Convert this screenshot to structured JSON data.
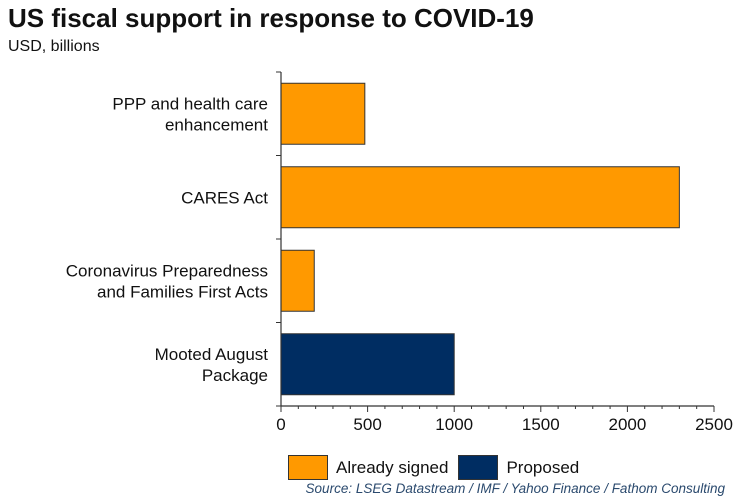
{
  "chart_data": {
    "type": "bar",
    "orientation": "horizontal",
    "title": "US fiscal support in response to COVID-19",
    "subtitle": "USD, billions",
    "categories": [
      [
        "PPP and health care",
        "enhancement"
      ],
      [
        "CARES Act"
      ],
      [
        "Coronavirus Preparedness",
        "and Families First Acts"
      ],
      [
        "Mooted August",
        "Package"
      ]
    ],
    "values": [
      484,
      2300,
      192,
      1000
    ],
    "series_index": [
      0,
      0,
      0,
      1
    ],
    "series": [
      {
        "name": "Already signed",
        "color": "#ff9900"
      },
      {
        "name": "Proposed",
        "color": "#002d62"
      }
    ],
    "xlim": [
      0,
      2500
    ],
    "xticks": [
      "0",
      "500",
      "1000",
      "1500",
      "2000",
      "2500"
    ],
    "xlabel": "",
    "ylabel": "",
    "grid": false,
    "legend": "bottom"
  },
  "source": "Source: LSEG Datastream / IMF / Yahoo Finance / Fathom Consulting"
}
